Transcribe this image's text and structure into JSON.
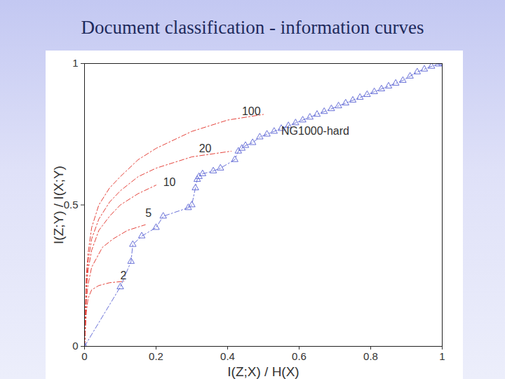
{
  "chart_data": {
    "type": "line",
    "title": "Document classification - information curves",
    "x_label": "I(Z;X) / H(X)",
    "y_label": "I(Z;Y) / I(X;Y)",
    "xlim": [
      0,
      1
    ],
    "ylim": [
      0,
      1
    ],
    "xticks": [
      0,
      0.2,
      0.4,
      0.6,
      0.8,
      1
    ],
    "yticks": [
      0,
      0.5,
      1
    ],
    "grid": false,
    "series": [
      {
        "name": "2",
        "color": "#e5443c",
        "line_style": "dashdot",
        "x": [
          0,
          0.005,
          0.01,
          0.02,
          0.04,
          0.07,
          0.11
        ],
        "values": [
          0,
          0.12,
          0.17,
          0.2,
          0.215,
          0.225,
          0.23
        ]
      },
      {
        "name": "5",
        "color": "#e5443c",
        "line_style": "dashdot",
        "x": [
          0,
          0.005,
          0.01,
          0.02,
          0.05,
          0.08,
          0.12,
          0.17
        ],
        "values": [
          0,
          0.16,
          0.22,
          0.28,
          0.35,
          0.38,
          0.41,
          0.43
        ]
      },
      {
        "name": "10",
        "color": "#e5443c",
        "line_style": "dashdot",
        "x": [
          0,
          0.005,
          0.01,
          0.02,
          0.04,
          0.07,
          0.1,
          0.15,
          0.2
        ],
        "values": [
          0,
          0.2,
          0.27,
          0.34,
          0.41,
          0.46,
          0.5,
          0.54,
          0.57
        ]
      },
      {
        "name": "20",
        "color": "#e5443c",
        "line_style": "dashdot",
        "x": [
          0,
          0.005,
          0.01,
          0.02,
          0.04,
          0.07,
          0.1,
          0.15,
          0.2,
          0.3,
          0.41
        ],
        "values": [
          0,
          0.22,
          0.3,
          0.38,
          0.45,
          0.51,
          0.55,
          0.6,
          0.63,
          0.67,
          0.69
        ]
      },
      {
        "name": "100",
        "color": "#e5443c",
        "line_style": "dashdot",
        "x": [
          0,
          0.005,
          0.01,
          0.02,
          0.04,
          0.07,
          0.1,
          0.15,
          0.2,
          0.3,
          0.4,
          0.5
        ],
        "values": [
          0,
          0.25,
          0.33,
          0.42,
          0.5,
          0.56,
          0.6,
          0.66,
          0.7,
          0.76,
          0.8,
          0.82
        ]
      },
      {
        "name": "NG1000-hard",
        "color": "#6a72d8",
        "line_style": "dashdot",
        "marker": "triangle",
        "x": [
          0,
          0.1,
          0.13,
          0.135,
          0.16,
          0.2,
          0.22,
          0.29,
          0.3,
          0.31,
          0.315,
          0.32,
          0.33,
          0.36,
          0.38,
          0.42,
          0.43,
          0.44,
          0.45,
          0.47,
          0.49,
          0.51,
          0.53,
          0.55,
          0.57,
          0.59,
          0.61,
          0.63,
          0.65,
          0.67,
          0.69,
          0.71,
          0.73,
          0.75,
          0.77,
          0.79,
          0.81,
          0.83,
          0.85,
          0.87,
          0.89,
          0.91,
          0.93,
          0.95,
          0.97,
          0.99,
          1
        ],
        "values": [
          0,
          0.21,
          0.3,
          0.36,
          0.39,
          0.42,
          0.46,
          0.49,
          0.5,
          0.56,
          0.59,
          0.6,
          0.61,
          0.62,
          0.63,
          0.66,
          0.69,
          0.7,
          0.71,
          0.72,
          0.74,
          0.75,
          0.76,
          0.77,
          0.78,
          0.79,
          0.8,
          0.81,
          0.82,
          0.83,
          0.84,
          0.85,
          0.86,
          0.87,
          0.88,
          0.89,
          0.9,
          0.91,
          0.92,
          0.93,
          0.94,
          0.955,
          0.97,
          0.98,
          0.99,
          0.998,
          1
        ]
      }
    ],
    "annotations": [
      {
        "text": "2",
        "x": 0.1,
        "y": 0.25
      },
      {
        "text": "5",
        "x": 0.17,
        "y": 0.47
      },
      {
        "text": "10",
        "x": 0.22,
        "y": 0.58
      },
      {
        "text": "20",
        "x": 0.32,
        "y": 0.7
      },
      {
        "text": "100",
        "x": 0.44,
        "y": 0.83
      },
      {
        "text": "NG1000-hard",
        "x": 0.55,
        "y": 0.76
      }
    ]
  }
}
